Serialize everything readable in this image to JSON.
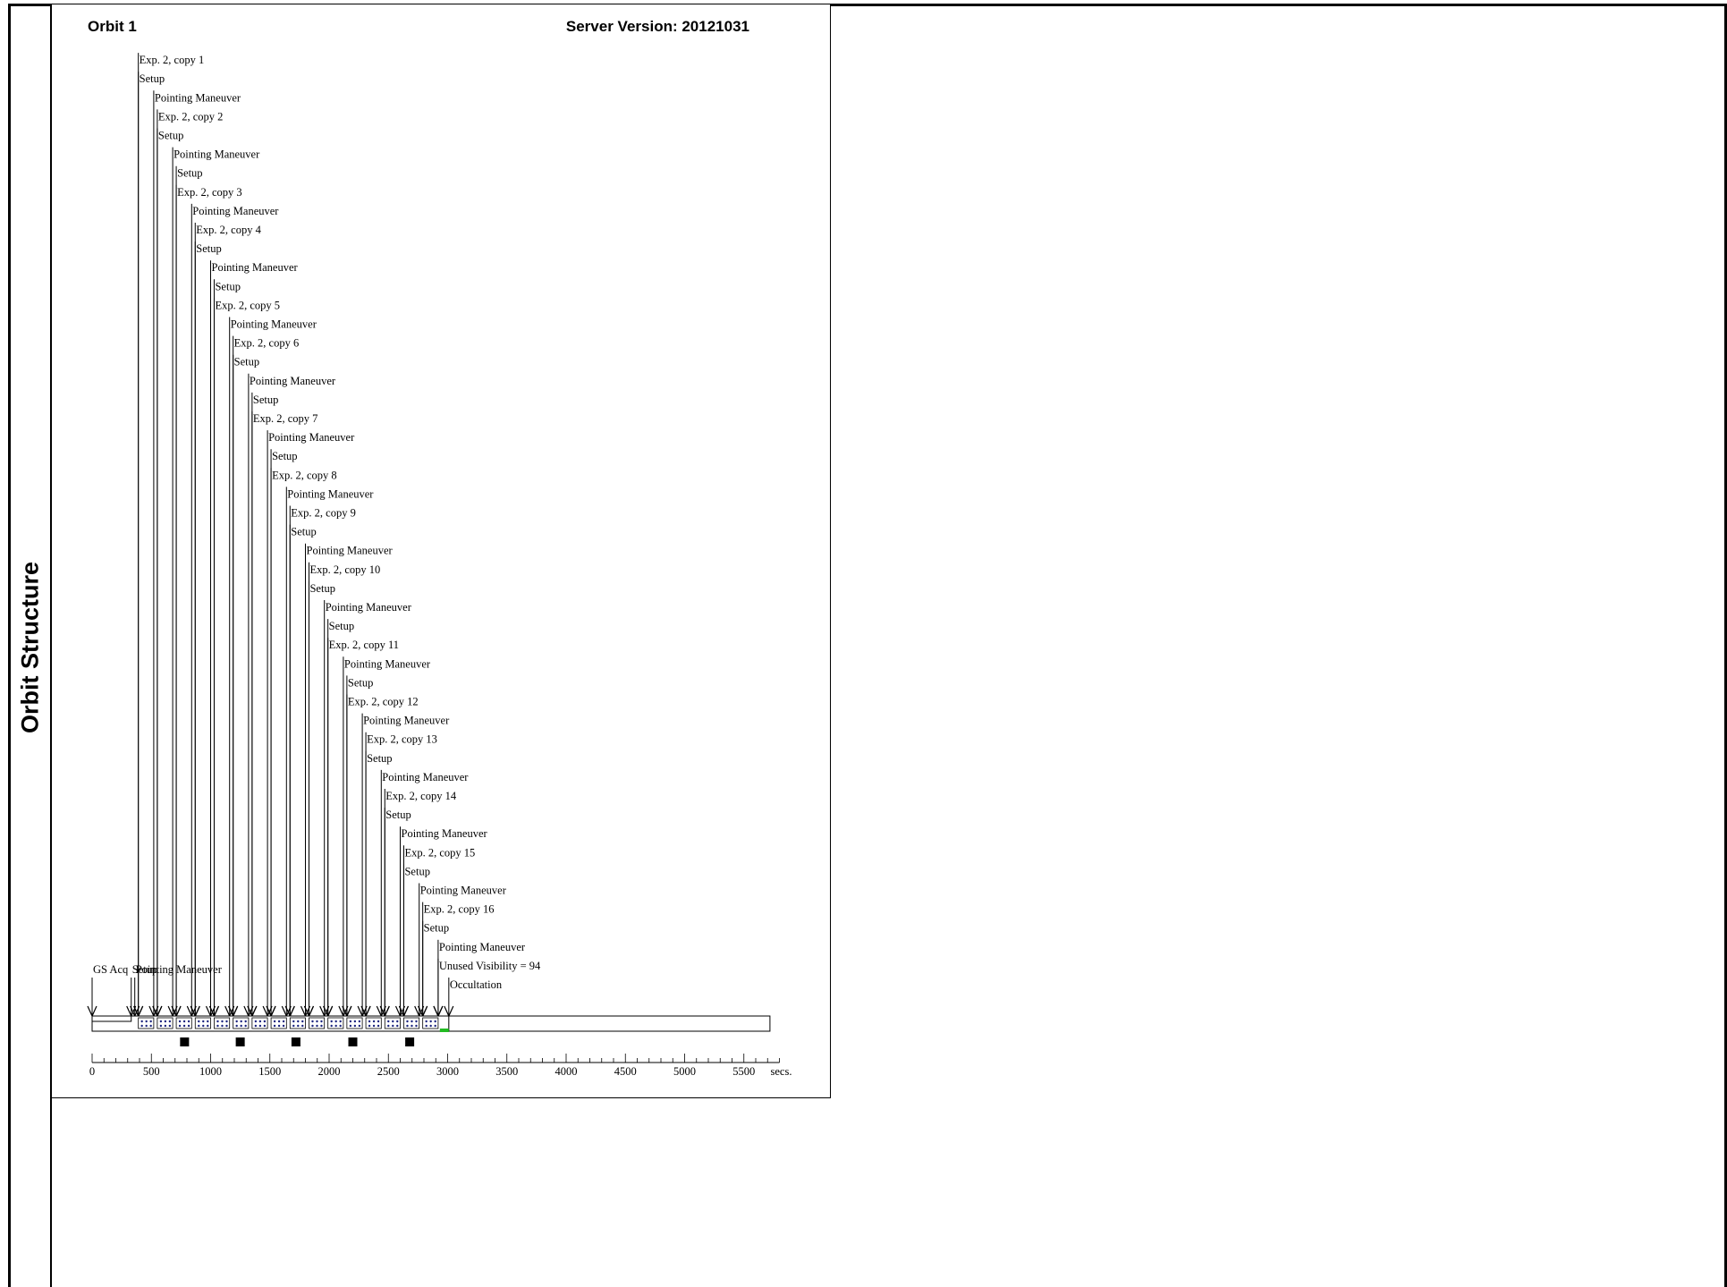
{
  "side_title": "Orbit Structure",
  "orbit_label": "Orbit 1",
  "server_version": "Server Version: 20121031",
  "chart_data": {
    "type": "timeline",
    "unit_label": "secs.",
    "axis_range": [
      0,
      5800
    ],
    "ticks": [
      0,
      500,
      1000,
      1500,
      2000,
      2500,
      3000,
      3500,
      4000,
      4500,
      5000,
      5500
    ],
    "events": [
      {
        "label": "GS Acq",
        "t": 0
      },
      {
        "label": "Exp. 2, copy 1",
        "t": 390
      },
      {
        "label": "Setup",
        "t": 390
      },
      {
        "label": "Pointing Maneuver",
        "t": 520
      },
      {
        "label": "Exp. 2, copy 2",
        "t": 550
      },
      {
        "label": "Setup",
        "t": 550
      },
      {
        "label": "Pointing Maneuver",
        "t": 680
      },
      {
        "label": "Setup",
        "t": 710
      },
      {
        "label": "Exp. 2, copy 3",
        "t": 710
      },
      {
        "label": "Pointing Maneuver",
        "t": 840
      },
      {
        "label": "Exp. 2, copy 4",
        "t": 870
      },
      {
        "label": "Setup",
        "t": 870
      },
      {
        "label": "Pointing Maneuver",
        "t": 1000
      },
      {
        "label": "Setup",
        "t": 1030
      },
      {
        "label": "Exp. 2, copy 5",
        "t": 1030
      },
      {
        "label": "Pointing Maneuver",
        "t": 1160
      },
      {
        "label": "Exp. 2, copy 6",
        "t": 1190
      },
      {
        "label": "Setup",
        "t": 1190
      },
      {
        "label": "Pointing Maneuver",
        "t": 1320
      },
      {
        "label": "Setup",
        "t": 1350
      },
      {
        "label": "Exp. 2, copy 7",
        "t": 1350
      },
      {
        "label": "Pointing Maneuver",
        "t": 1480
      },
      {
        "label": "Setup",
        "t": 1510
      },
      {
        "label": "Exp. 2, copy 8",
        "t": 1510
      },
      {
        "label": "Pointing Maneuver",
        "t": 1640
      },
      {
        "label": "Exp. 2, copy 9",
        "t": 1670
      },
      {
        "label": "Setup",
        "t": 1670
      },
      {
        "label": "Pointing Maneuver",
        "t": 1800
      },
      {
        "label": "Exp. 2, copy 10",
        "t": 1830
      },
      {
        "label": "Setup",
        "t": 1830
      },
      {
        "label": "Pointing Maneuver",
        "t": 1960
      },
      {
        "label": "Setup",
        "t": 1990
      },
      {
        "label": "Exp. 2, copy 11",
        "t": 1990
      },
      {
        "label": "Pointing Maneuver",
        "t": 2120
      },
      {
        "label": "Setup",
        "t": 2150
      },
      {
        "label": "Exp. 2, copy 12",
        "t": 2150
      },
      {
        "label": "Pointing Maneuver",
        "t": 2280
      },
      {
        "label": "Exp. 2, copy 13",
        "t": 2310
      },
      {
        "label": "Setup",
        "t": 2310
      },
      {
        "label": "Pointing Maneuver",
        "t": 2440
      },
      {
        "label": "Exp. 2, copy 14",
        "t": 2470
      },
      {
        "label": "Setup",
        "t": 2470
      },
      {
        "label": "Pointing Maneuver",
        "t": 2600
      },
      {
        "label": "Exp. 2, copy 15",
        "t": 2630
      },
      {
        "label": "Setup",
        "t": 2630
      },
      {
        "label": "Pointing Maneuver",
        "t": 2760
      },
      {
        "label": "Exp. 2, copy 16",
        "t": 2790
      },
      {
        "label": "Setup",
        "t": 2790
      },
      {
        "label": "Pointing Maneuver",
        "t": 2920
      },
      {
        "label": "Unused Visibility = 94",
        "t": 2920
      },
      {
        "label": "Occultation",
        "t": 3010
      }
    ],
    "bottom_labels": [
      {
        "label": "GS Acq",
        "t": 0
      },
      {
        "label": "Setup",
        "t": 330
      },
      {
        "label": "Pointing Maneuver",
        "t": 360
      }
    ],
    "visibility_end": 3010,
    "orbit_end": 5720,
    "markers": [
      780,
      1250,
      1720,
      2200,
      2680
    ]
  }
}
